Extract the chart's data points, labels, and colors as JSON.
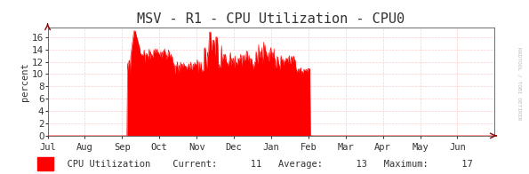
{
  "title": "MSV - R1 - CPU Utilization - CPU0",
  "ylabel": "percent",
  "bg_color": "#ffffff",
  "plot_bg_color": "#ffffff",
  "grid_color": "#ffcccc",
  "fill_color": "#ff0000",
  "line_color": "#ff0000",
  "axis_color": "#555555",
  "text_color": "#333333",
  "watermark": "RRDTOOL / TOBI OETIKER",
  "ylim": [
    0,
    17.5
  ],
  "yticks": [
    0,
    2,
    4,
    6,
    8,
    10,
    12,
    14,
    16
  ],
  "xtick_labels": [
    "Jul",
    "Aug",
    "Sep",
    "Oct",
    "Nov",
    "Dec",
    "Jan",
    "Feb",
    "Mar",
    "Apr",
    "May",
    "Jun"
  ],
  "legend_label": "CPU Utilization",
  "legend_current": "11",
  "legend_average": "13",
  "legend_maximum": "17",
  "font_family": "monospace",
  "title_fontsize": 11,
  "label_fontsize": 7.5,
  "tick_fontsize": 7.5,
  "legend_fontsize": 7.5
}
